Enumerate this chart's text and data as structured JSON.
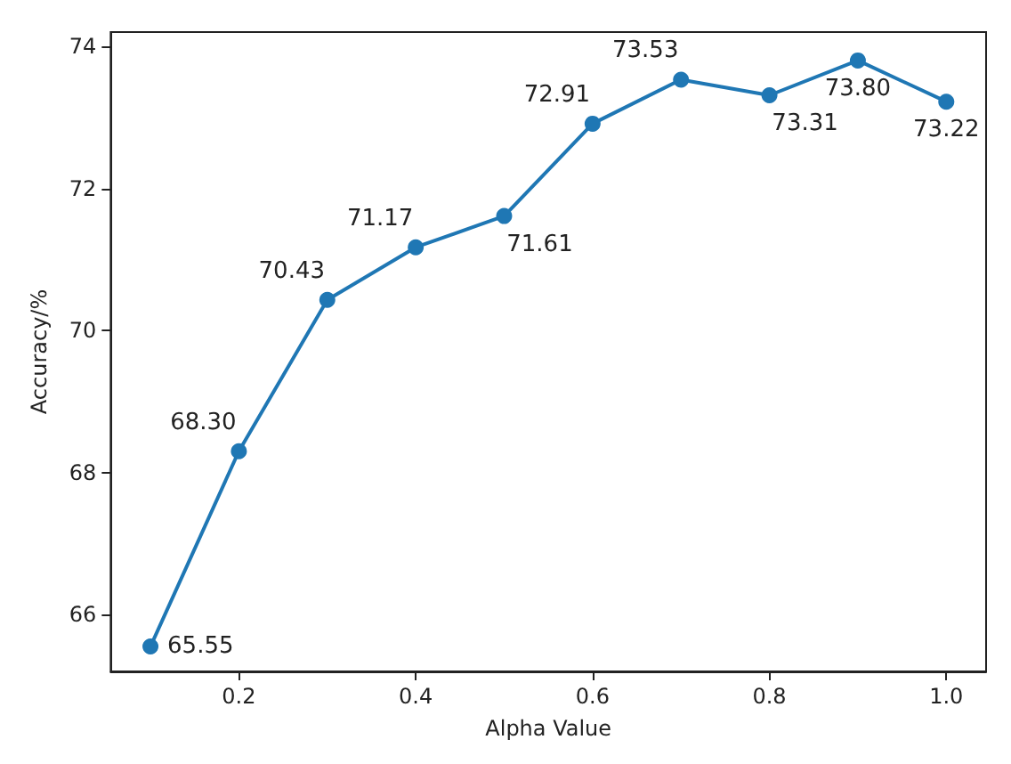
{
  "chart_data": {
    "type": "line",
    "xlabel": "Alpha Value",
    "ylabel": "Accuracy/%",
    "x": [
      0.1,
      0.2,
      0.3,
      0.4,
      0.5,
      0.6,
      0.7,
      0.8,
      0.9,
      1.0
    ],
    "series": [
      {
        "color": "#1f77b4",
        "values": [
          65.55,
          68.3,
          70.43,
          71.17,
          71.61,
          72.91,
          73.53,
          73.31,
          73.8,
          73.22
        ],
        "value_labels": [
          "65.55",
          "68.30",
          "70.43",
          "71.17",
          "71.61",
          "72.91",
          "73.53",
          "73.31",
          "73.80",
          "73.22"
        ]
      }
    ],
    "xlim": [
      0.055,
      1.045
    ],
    "xticks": [
      0.2,
      0.4,
      0.6,
      0.8,
      {
        "value": 1,
        "label": "1.0"
      }
    ],
    "ylim": [
      65.2,
      74.2
    ],
    "yticks": [
      66,
      68,
      70,
      72,
      74
    ],
    "marker": "circle",
    "line_style": "solid",
    "grid": false
  }
}
